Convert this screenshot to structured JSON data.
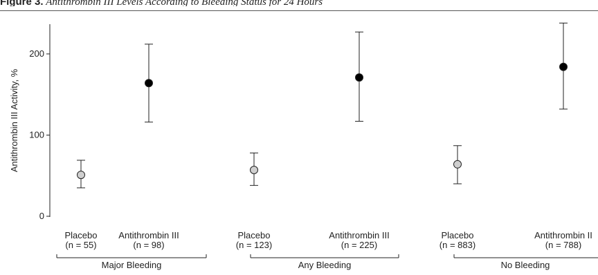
{
  "figure": {
    "label": "Figure 3.",
    "caption": "Antithrombin III Levels According to Bleeding Status for 24 Hours"
  },
  "chart_data": {
    "type": "scatter",
    "ylabel": "Antithrombin III Activity, %",
    "ylim": [
      0,
      240
    ],
    "yticks": [
      0,
      100,
      200
    ],
    "grid": false,
    "groups": [
      {
        "label": "Major Bleeding",
        "points": [
          {
            "label": "Placebo",
            "n_label": "(n = 55)",
            "value": 51,
            "lower": 35,
            "upper": 69,
            "color": "#cfcfcf"
          },
          {
            "label": "Antithrombin III",
            "n_label": "(n = 98)",
            "value": 164,
            "lower": 116,
            "upper": 212,
            "color": "#000000"
          }
        ]
      },
      {
        "label": "Any Bleeding",
        "points": [
          {
            "label": "Placebo",
            "n_label": "(n = 123)",
            "value": 57,
            "lower": 38,
            "upper": 78,
            "color": "#cfcfcf"
          },
          {
            "label": "Antithrombin III",
            "n_label": "(n = 225)",
            "value": 171,
            "lower": 117,
            "upper": 227,
            "color": "#000000"
          }
        ]
      },
      {
        "label": "No Bleeding",
        "points": [
          {
            "label": "Placebo",
            "n_label": "(n = 883)",
            "value": 64,
            "lower": 40,
            "upper": 87,
            "color": "#cfcfcf"
          },
          {
            "label": "Antithrombin II",
            "n_label": "(n = 788)",
            "value": 184,
            "lower": 132,
            "upper": 238,
            "color": "#000000"
          }
        ]
      }
    ]
  }
}
